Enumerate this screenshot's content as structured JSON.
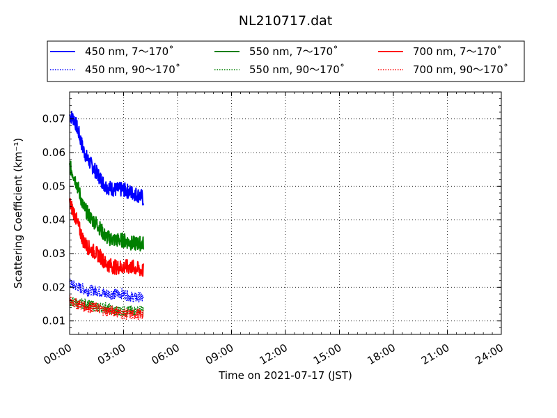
{
  "chart_data": {
    "type": "line",
    "title": "NL210717.dat",
    "xlabel": "Time on 2021-07-17 (JST)",
    "ylabel": "Scattering Coefficient (km⁻¹)",
    "x_ticks": [
      "00:00",
      "03:00",
      "06:00",
      "09:00",
      "12:00",
      "15:00",
      "18:00",
      "21:00",
      "24:00"
    ],
    "x_range_hours": [
      0,
      24
    ],
    "y_ticks": [
      "0.01",
      "0.02",
      "0.03",
      "0.04",
      "0.05",
      "0.06",
      "0.07"
    ],
    "ylim": [
      0.006,
      0.078
    ],
    "grid": true,
    "legend_position": "top",
    "series": [
      {
        "name": "450 nm, 7～170˚",
        "color": "#0000ff",
        "style": "solid",
        "x": [
          0,
          0.25,
          0.5,
          0.75,
          1.0,
          1.25,
          1.5,
          1.75,
          2.0,
          2.5,
          3.0,
          3.5,
          4.0,
          4.1
        ],
        "y": [
          0.071,
          0.07,
          0.066,
          0.061,
          0.058,
          0.056,
          0.054,
          0.052,
          0.05,
          0.049,
          0.049,
          0.048,
          0.047,
          0.046
        ]
      },
      {
        "name": "450 nm, 90～170˚",
        "color": "#0000ff",
        "style": "dotted",
        "x": [
          0,
          0.5,
          1.0,
          1.5,
          2.0,
          2.5,
          3.0,
          3.5,
          4.0,
          4.1
        ],
        "y": [
          0.021,
          0.02,
          0.019,
          0.019,
          0.018,
          0.018,
          0.018,
          0.017,
          0.017,
          0.016
        ]
      },
      {
        "name": "550 nm, 7～170˚",
        "color": "#008000",
        "style": "solid",
        "x": [
          0,
          0.25,
          0.5,
          0.75,
          1.0,
          1.25,
          1.5,
          1.75,
          2.0,
          2.5,
          3.0,
          3.5,
          4.0,
          4.1
        ],
        "y": [
          0.056,
          0.053,
          0.049,
          0.044,
          0.042,
          0.04,
          0.039,
          0.037,
          0.035,
          0.034,
          0.034,
          0.033,
          0.033,
          0.033
        ]
      },
      {
        "name": "550 nm, 90～170˚",
        "color": "#008000",
        "style": "dotted",
        "x": [
          0,
          0.5,
          1.0,
          1.5,
          2.0,
          2.5,
          3.0,
          3.5,
          4.0,
          4.1
        ],
        "y": [
          0.016,
          0.015,
          0.015,
          0.014,
          0.014,
          0.013,
          0.013,
          0.013,
          0.013,
          0.013
        ]
      },
      {
        "name": "700 nm, 7～170˚",
        "color": "#ff0000",
        "style": "solid",
        "x": [
          0,
          0.25,
          0.5,
          0.75,
          1.0,
          1.25,
          1.5,
          1.75,
          2.0,
          2.5,
          3.0,
          3.5,
          4.0,
          4.1
        ],
        "y": [
          0.045,
          0.042,
          0.038,
          0.034,
          0.032,
          0.031,
          0.03,
          0.029,
          0.027,
          0.026,
          0.026,
          0.026,
          0.025,
          0.025
        ]
      },
      {
        "name": "700 nm, 90～170˚",
        "color": "#ff0000",
        "style": "dotted",
        "x": [
          0,
          0.5,
          1.0,
          1.5,
          2.0,
          2.5,
          3.0,
          3.5,
          4.0,
          4.1
        ],
        "y": [
          0.016,
          0.015,
          0.014,
          0.014,
          0.013,
          0.013,
          0.012,
          0.012,
          0.012,
          0.012
        ]
      }
    ]
  }
}
